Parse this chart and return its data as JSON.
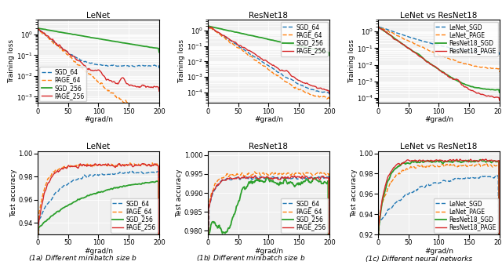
{
  "titles_top": [
    "LeNet",
    "ResNet18",
    "LeNet vs ResNet18"
  ],
  "titles_bottom": [
    "LeNet",
    "ResNet18",
    "LeNet vs ResNet18"
  ],
  "captions": [
    "(1a) Different minibatch size $b$",
    "(1b) Different minibatch size $b$",
    "(1c) Different neural networks"
  ],
  "xlabel": "#grad/n",
  "ylabel_top": "Training loss",
  "ylabel_bottom": "Test accuracy",
  "legend_top1": [
    "SGD_64",
    "PAGE_64",
    "SGD_256",
    "PAGE_256"
  ],
  "legend_top2": [
    "SGD_64",
    "PAGE_64",
    "SGD_256",
    "PAGE_256"
  ],
  "legend_top3": [
    "LeNet_SGD",
    "LeNet_PAGE",
    "ResNet18_SGD",
    "ResNet18_PAGE"
  ],
  "legend_bot1": [
    "SGD_64",
    "PAGE_64",
    "SGD_256",
    "PAGE_256"
  ],
  "legend_bot2": [
    "SGD_64",
    "PAGE_64",
    "SGD_256",
    "PAGE_256"
  ],
  "legend_bot3": [
    "LeNet_SGD",
    "LeNet_PAGE",
    "ResNet18_SGD",
    "ResNet18_PAGE"
  ],
  "blue": "#1f77b4",
  "orange": "#ff7f0e",
  "green": "#2ca02c",
  "red": "#d62728",
  "bg_color": "#f0f0f0"
}
